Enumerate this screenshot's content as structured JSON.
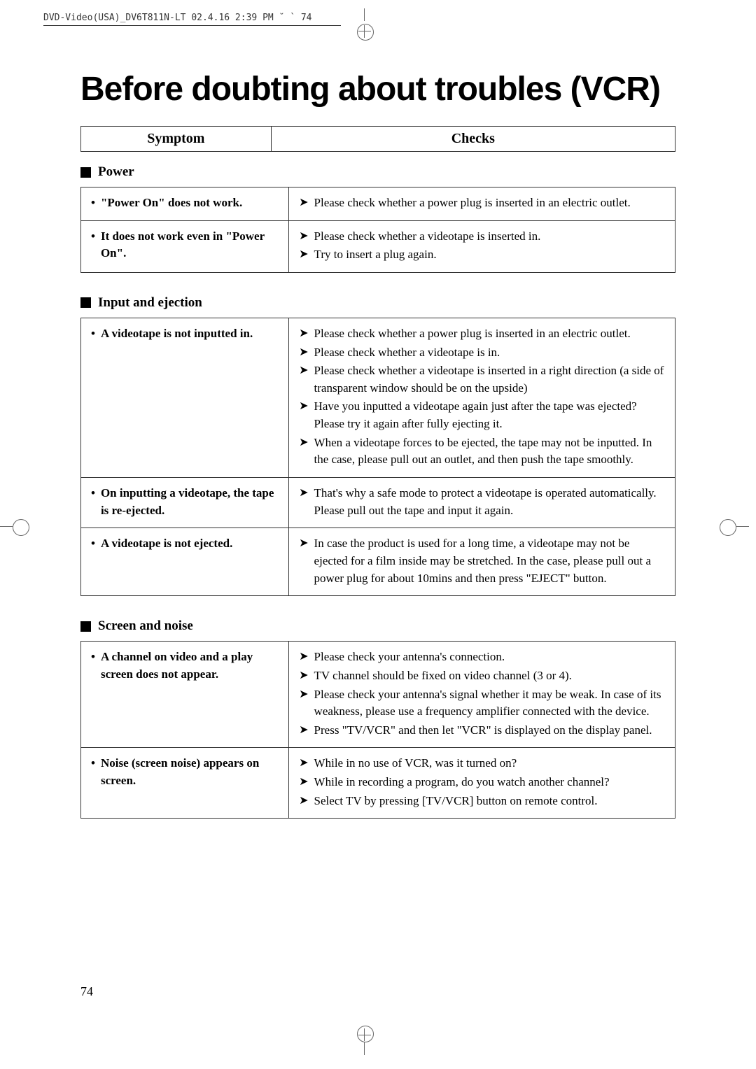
{
  "header_text": "DVD-Video(USA)_DV6T811N-LT  02.4.16 2:39 PM  ˘  `  74",
  "main_title": "Before doubting about troubles (VCR)",
  "table_headers": {
    "symptom": "Symptom",
    "checks": "Checks"
  },
  "sections": {
    "power": {
      "title": "Power",
      "rows": [
        {
          "symptom": "\"Power On\" does not work.",
          "checks": [
            "Please check whether a power plug is inserted in an electric outlet."
          ]
        },
        {
          "symptom": "It does not work even in \"Power On\".",
          "checks": [
            "Please check whether a videotape is inserted in.",
            "Try to insert a plug again."
          ]
        }
      ]
    },
    "input": {
      "title": "Input and ejection",
      "rows": [
        {
          "symptom": "A videotape is not inputted in.",
          "checks": [
            "Please check whether a power plug is inserted in an electric outlet.",
            "Please check whether a videotape is in.",
            "Please check whether a videotape is inserted in a right direction (a side of transparent window should be on the upside)",
            "Have you inputted a videotape again just after the tape was ejected? Please try it again after fully ejecting it.",
            "When a videotape forces to be ejected, the tape may not be inputted. In the case, please pull out an outlet, and then push the tape smoothly."
          ]
        },
        {
          "symptom": "On inputting a videotape, the tape is re-ejected.",
          "checks": [
            "That's why a safe mode to protect a videotape is operated automatically. Please pull out the tape and input it again."
          ]
        },
        {
          "symptom": "A videotape is not ejected.",
          "checks": [
            "In case the product is used for a long time, a videotape may not be ejected for a film inside may be stretched. In the case, please pull out a power plug for about 10mins and then press \"EJECT\" button."
          ]
        }
      ]
    },
    "screen": {
      "title": "Screen and noise",
      "rows": [
        {
          "symptom": "A channel on video and a play screen does not appear.",
          "checks": [
            "Please check your antenna's connection.",
            "TV channel should be fixed on video channel (3 or 4).",
            "Please check your antenna's signal whether it may be weak. In case of its weakness, please use a frequency amplifier connected with the device.",
            "Press \"TV/VCR\" and then let \"VCR\" is displayed on the display panel."
          ]
        },
        {
          "symptom": "Noise (screen noise) appears on screen.",
          "checks": [
            "While in no use of VCR, was it turned on?",
            "While in recording a program, do you watch another channel?",
            "Select TV by pressing [TV/VCR] button on remote control."
          ]
        }
      ]
    }
  },
  "page_number": "74"
}
